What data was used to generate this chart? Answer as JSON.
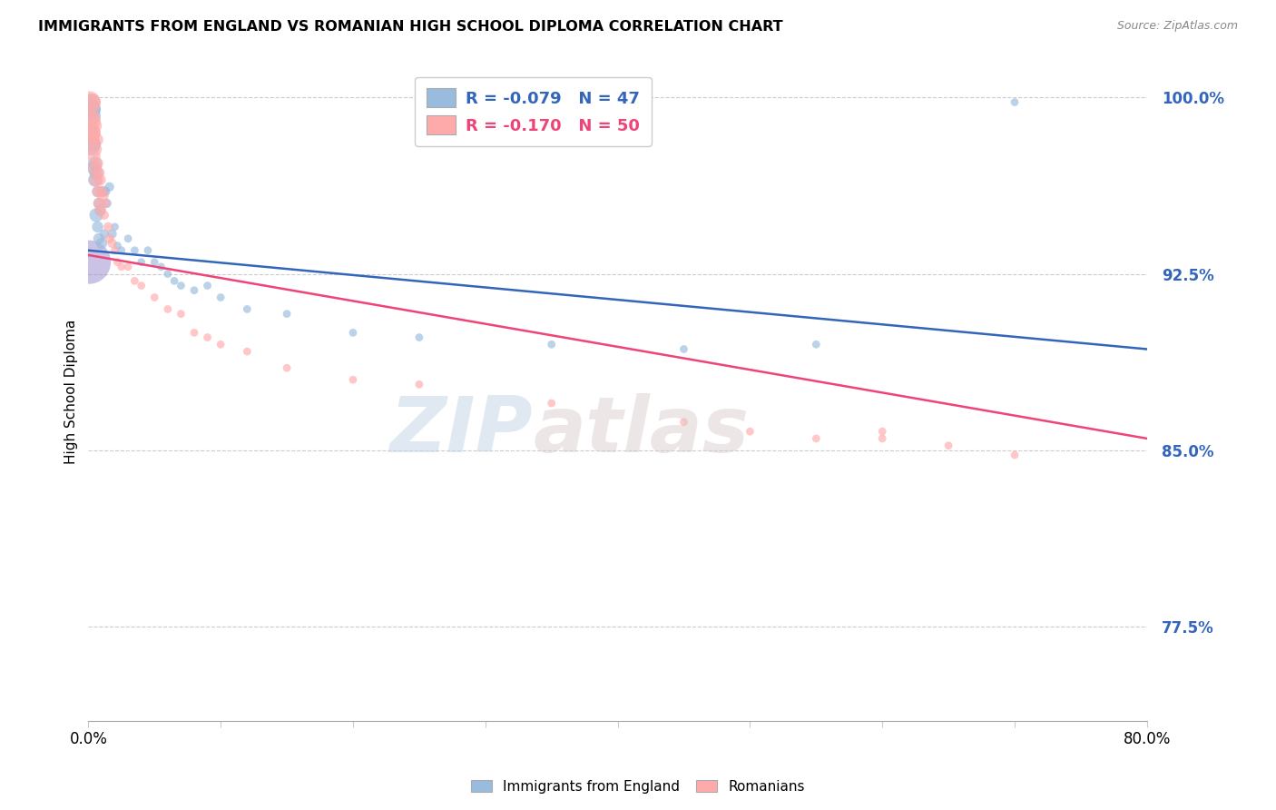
{
  "title": "IMMIGRANTS FROM ENGLAND VS ROMANIAN HIGH SCHOOL DIPLOMA CORRELATION CHART",
  "source": "Source: ZipAtlas.com",
  "ylabel": "High School Diploma",
  "ytick_vals": [
    1.0,
    0.925,
    0.85,
    0.775
  ],
  "blue_color": "#99BBDD",
  "pink_color": "#FFAAAA",
  "blue_line_color": "#3366BB",
  "pink_line_color": "#EE4477",
  "watermark_zip": "ZIP",
  "watermark_atlas": "atlas",
  "blue_line_x0": 0.0,
  "blue_line_y0": 0.935,
  "blue_line_x1": 0.8,
  "blue_line_y1": 0.893,
  "pink_line_x0": 0.0,
  "pink_line_y0": 0.933,
  "pink_line_x1": 0.8,
  "pink_line_y1": 0.855,
  "blue_scatter_x": [
    0.001,
    0.001,
    0.002,
    0.002,
    0.003,
    0.003,
    0.004,
    0.004,
    0.005,
    0.005,
    0.006,
    0.006,
    0.007,
    0.007,
    0.008,
    0.008,
    0.009,
    0.01,
    0.011,
    0.012,
    0.013,
    0.014,
    0.016,
    0.018,
    0.02,
    0.022,
    0.025,
    0.03,
    0.035,
    0.04,
    0.045,
    0.05,
    0.055,
    0.06,
    0.065,
    0.07,
    0.08,
    0.09,
    0.1,
    0.12,
    0.15,
    0.2,
    0.25,
    0.35,
    0.45,
    0.55,
    0.7
  ],
  "blue_scatter_y": [
    0.98,
    0.995,
    0.998,
    0.985,
    0.995,
    0.992,
    0.98,
    0.97,
    0.972,
    0.965,
    0.968,
    0.95,
    0.945,
    0.96,
    0.94,
    0.955,
    0.952,
    0.938,
    0.96,
    0.942,
    0.96,
    0.955,
    0.962,
    0.942,
    0.945,
    0.937,
    0.935,
    0.94,
    0.935,
    0.93,
    0.935,
    0.93,
    0.928,
    0.925,
    0.922,
    0.92,
    0.918,
    0.92,
    0.915,
    0.91,
    0.908,
    0.9,
    0.898,
    0.895,
    0.893,
    0.895,
    0.998
  ],
  "pink_scatter_x": [
    0.001,
    0.001,
    0.002,
    0.002,
    0.003,
    0.003,
    0.004,
    0.004,
    0.005,
    0.005,
    0.005,
    0.006,
    0.006,
    0.007,
    0.007,
    0.008,
    0.008,
    0.009,
    0.009,
    0.01,
    0.011,
    0.012,
    0.013,
    0.015,
    0.016,
    0.018,
    0.02,
    0.022,
    0.025,
    0.03,
    0.035,
    0.04,
    0.05,
    0.06,
    0.07,
    0.08,
    0.09,
    0.1,
    0.12,
    0.15,
    0.2,
    0.25,
    0.35,
    0.45,
    0.5,
    0.55,
    0.6,
    0.6,
    0.65,
    0.7
  ],
  "pink_scatter_y": [
    0.985,
    0.998,
    0.992,
    0.982,
    0.998,
    0.99,
    0.985,
    0.975,
    0.988,
    0.978,
    0.97,
    0.982,
    0.965,
    0.972,
    0.96,
    0.968,
    0.955,
    0.965,
    0.952,
    0.96,
    0.958,
    0.95,
    0.955,
    0.945,
    0.94,
    0.938,
    0.935,
    0.93,
    0.928,
    0.928,
    0.922,
    0.92,
    0.915,
    0.91,
    0.908,
    0.9,
    0.898,
    0.895,
    0.892,
    0.885,
    0.88,
    0.878,
    0.87,
    0.862,
    0.858,
    0.855,
    0.855,
    0.858,
    0.852,
    0.848
  ],
  "xlim": [
    0.0,
    0.8
  ],
  "ylim": [
    0.735,
    1.015
  ]
}
